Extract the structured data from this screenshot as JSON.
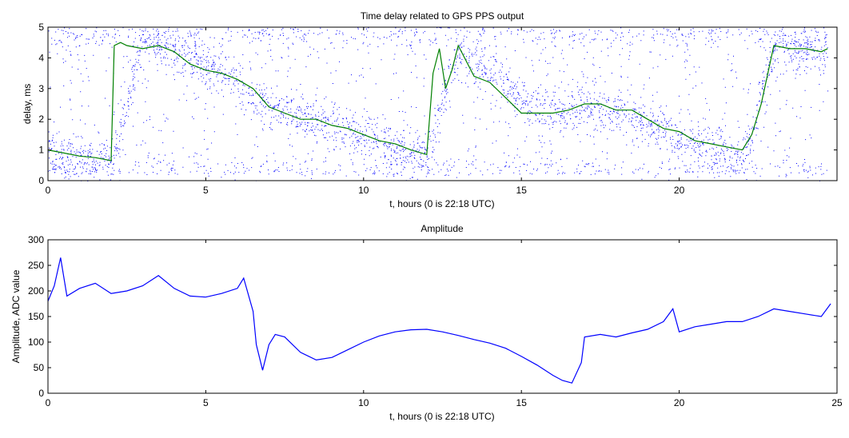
{
  "chart_data": [
    {
      "type": "scatter",
      "title": "Time delay related to GPS PPS output",
      "xlabel": "t, hours (0 is 22:18 UTC)",
      "ylabel": "delay, ms",
      "xlim": [
        0,
        25
      ],
      "ylim": [
        0,
        5
      ],
      "xticks": [
        0,
        5,
        10,
        15,
        20
      ],
      "yticks": [
        0,
        1,
        2,
        3,
        4,
        5
      ],
      "grid": false,
      "series": [
        {
          "kind": "scatter",
          "color": "#0000ff",
          "description_points": "dense blue dots concentrated along the trend band",
          "trend_x": [
            0,
            1,
            2,
            3,
            4,
            5,
            6,
            6.5,
            7,
            8,
            9,
            10,
            11,
            12,
            13,
            14,
            15,
            16,
            17,
            18,
            19,
            20,
            21,
            22,
            23,
            24,
            24.7
          ],
          "trend_y": [
            0.9,
            0.8,
            0.6,
            4.6,
            4.3,
            3.7,
            3.2,
            2.7,
            2.4,
            2.1,
            1.8,
            1.4,
            1.1,
            0.8,
            4.3,
            3.5,
            2.6,
            2.3,
            2.4,
            2.3,
            1.8,
            1.3,
            1.0,
            0.6,
            4.4,
            4.2,
            4.3
          ]
        },
        {
          "kind": "line",
          "color": "#008000",
          "x": [
            0,
            0.5,
            1,
            1.5,
            2,
            2.1,
            2.3,
            2.5,
            3,
            3.5,
            4,
            4.5,
            5,
            5.5,
            6,
            6.5,
            7,
            7.5,
            8,
            8.5,
            9,
            9.5,
            10,
            10.5,
            11,
            11.5,
            12,
            12.2,
            12.4,
            12.6,
            12.8,
            13,
            13.5,
            14,
            14.5,
            15,
            15.5,
            16,
            16.5,
            17,
            17.5,
            18,
            18.5,
            19,
            19.5,
            20,
            20.5,
            21,
            21.5,
            22,
            22.3,
            22.6,
            23,
            23.5,
            24,
            24.5,
            24.7
          ],
          "y": [
            1.0,
            0.9,
            0.8,
            0.75,
            0.65,
            4.4,
            4.5,
            4.4,
            4.3,
            4.4,
            4.2,
            3.8,
            3.6,
            3.5,
            3.3,
            3.0,
            2.4,
            2.2,
            2.0,
            2.0,
            1.8,
            1.7,
            1.5,
            1.3,
            1.2,
            1.0,
            0.85,
            3.5,
            4.3,
            3.0,
            3.6,
            4.4,
            3.4,
            3.2,
            2.7,
            2.2,
            2.2,
            2.2,
            2.3,
            2.5,
            2.5,
            2.3,
            2.3,
            2.0,
            1.7,
            1.6,
            1.3,
            1.2,
            1.1,
            1.0,
            1.5,
            2.5,
            4.4,
            4.3,
            4.3,
            4.2,
            4.3
          ]
        }
      ]
    },
    {
      "type": "line",
      "title": "Amplitude",
      "xlabel": "t, hours (0 is 22:18 UTC)",
      "ylabel": "Amplitude, ADC value",
      "xlim": [
        0,
        25
      ],
      "ylim": [
        0,
        300
      ],
      "xticks": [
        0,
        5,
        10,
        15,
        20,
        25
      ],
      "yticks": [
        0,
        50,
        100,
        150,
        200,
        250,
        300
      ],
      "grid": false,
      "series": [
        {
          "color": "#0000ff",
          "x": [
            0,
            0.2,
            0.4,
            0.6,
            1,
            1.5,
            2,
            2.5,
            3,
            3.5,
            4,
            4.5,
            5,
            5.5,
            6,
            6.2,
            6.5,
            6.6,
            6.8,
            7,
            7.2,
            7.5,
            8,
            8.5,
            9,
            9.5,
            10,
            10.5,
            11,
            11.5,
            12,
            12.5,
            13,
            13.5,
            14,
            14.5,
            15,
            15.5,
            16,
            16.3,
            16.6,
            16.9,
            17,
            17.5,
            18,
            18.5,
            19,
            19.5,
            19.8,
            20,
            20.5,
            21,
            21.5,
            22,
            22.5,
            23,
            23.5,
            24,
            24.5,
            24.8
          ],
          "y": [
            180,
            210,
            265,
            190,
            205,
            215,
            195,
            200,
            210,
            230,
            205,
            190,
            188,
            195,
            205,
            225,
            160,
            95,
            45,
            95,
            115,
            110,
            80,
            65,
            70,
            85,
            100,
            112,
            120,
            124,
            125,
            120,
            113,
            105,
            98,
            88,
            72,
            55,
            35,
            25,
            20,
            60,
            110,
            115,
            110,
            118,
            125,
            140,
            165,
            120,
            130,
            135,
            140,
            140,
            150,
            165,
            160,
            155,
            150,
            175
          ]
        }
      ]
    }
  ]
}
